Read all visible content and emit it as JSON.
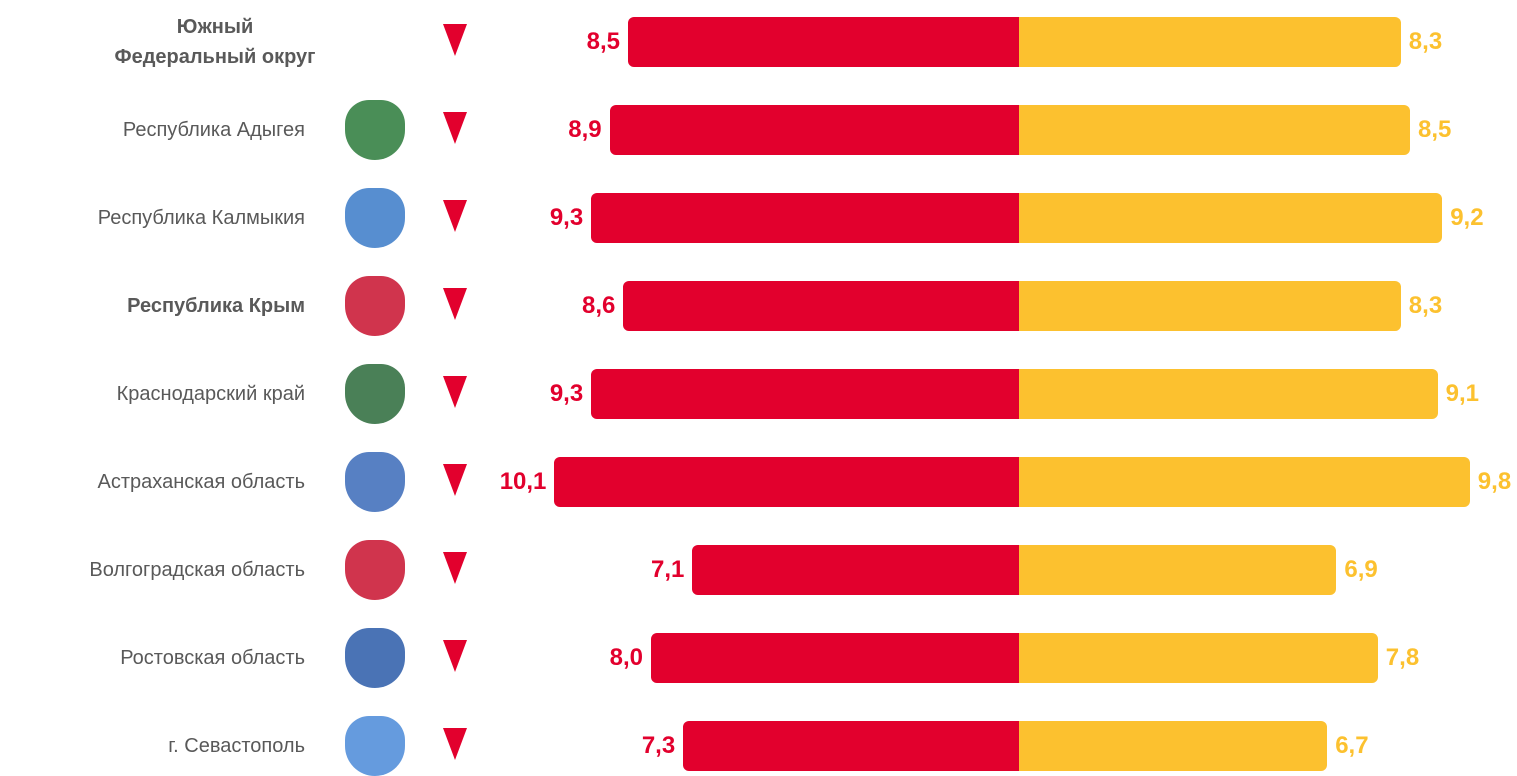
{
  "chart_data": {
    "type": "butterfly-bar",
    "categories": [
      "Южный\nФедеральный округ",
      "Республика Адыгея",
      "Республика Калмыкия",
      "Республика Крым",
      "Краснодарский край",
      "Астраханская область",
      "Волгоградская область",
      "Ростовская область",
      "г. Севастополь"
    ],
    "series": [
      {
        "color": "#e2002d",
        "values": [
          8.5,
          8.9,
          9.3,
          8.6,
          9.3,
          10.1,
          7.1,
          8.0,
          7.3
        ],
        "value_labels": [
          "8,5",
          "8,9",
          "9,3",
          "8,6",
          "9,3",
          "10,1",
          "7,1",
          "8,0",
          "7,3"
        ]
      },
      {
        "color": "#fcc12f",
        "values": [
          8.3,
          8.5,
          9.2,
          8.3,
          9.1,
          9.8,
          6.9,
          7.8,
          6.7
        ],
        "value_labels": [
          "8,3",
          "8,5",
          "9,2",
          "8,3",
          "9,1",
          "9,8",
          "6,9",
          "7,8",
          "6,7"
        ]
      }
    ]
  }
}
